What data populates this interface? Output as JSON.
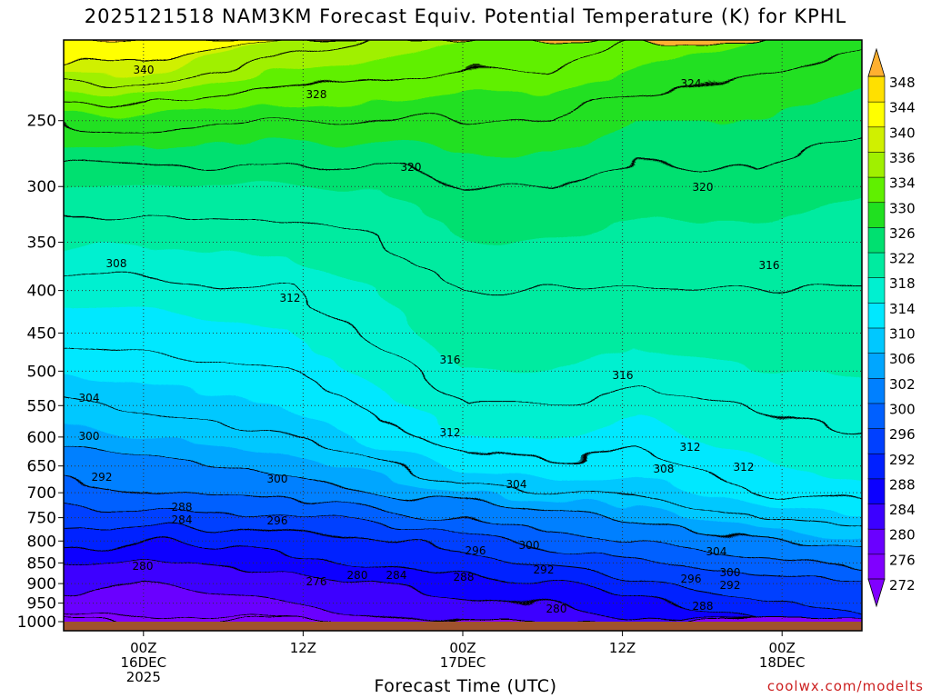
{
  "chart_data": {
    "type": "heatmap",
    "title": "2025121518 NAM3KM Forecast Equiv. Potential Temperature (K) for KPHL",
    "xlabel": "Forecast Time (UTC)",
    "ylabel": "",
    "y_scale": "log-pressure",
    "ylim": [
      1000,
      200
    ],
    "y_ticks": [
      250,
      300,
      350,
      400,
      450,
      500,
      550,
      600,
      650,
      700,
      750,
      800,
      850,
      900,
      950,
      1000
    ],
    "x_ticks": [
      {
        "label": [
          "00Z",
          "16DEC",
          "2025"
        ],
        "hour": 6
      },
      {
        "label": [
          "12Z"
        ],
        "hour": 18
      },
      {
        "label": [
          "00Z",
          "17DEC"
        ],
        "hour": 30
      },
      {
        "label": [
          "12Z"
        ],
        "hour": 42
      },
      {
        "label": [
          "00Z",
          "18DEC"
        ],
        "hour": 54
      }
    ],
    "xlim_hours": [
      0,
      60
    ],
    "grid": true,
    "colorbar": {
      "levels": [
        272,
        276,
        280,
        284,
        288,
        292,
        296,
        300,
        302,
        306,
        310,
        314,
        318,
        322,
        326,
        330,
        334,
        336,
        340,
        344,
        348
      ],
      "colors": [
        "#8000ff",
        "#6a00ff",
        "#3c00ff",
        "#0c00ff",
        "#0020ff",
        "#0040ff",
        "#0060ff",
        "#0080ff",
        "#00a6ff",
        "#00c8ff",
        "#00e8ff",
        "#00f0d0",
        "#00eba0",
        "#00e070",
        "#20e020",
        "#60f000",
        "#a0f000",
        "#d0f000",
        "#ffff00",
        "#ffe000",
        "#ffb030"
      ]
    },
    "isotherm_profiles": [
      {
        "hour": 0,
        "p": [
          1000,
          900,
          800,
          700,
          600,
          500,
          400,
          300,
          250,
          200
        ],
        "theta_e": [
          274,
          280,
          288,
          296,
          302,
          308,
          313,
          320,
          326,
          342
        ]
      },
      {
        "hour": 8,
        "p": [
          1000,
          900,
          800,
          700,
          600,
          500,
          400,
          300,
          250,
          200
        ],
        "theta_e": [
          273,
          277,
          286,
          298,
          304,
          309,
          313,
          320,
          327,
          342
        ]
      },
      {
        "hour": 18,
        "p": [
          1000,
          900,
          800,
          700,
          600,
          500,
          400,
          300,
          250,
          200
        ],
        "theta_e": [
          276,
          280,
          288,
          300,
          306,
          310,
          314,
          320,
          326,
          336
        ]
      },
      {
        "hour": 24,
        "p": [
          1000,
          900,
          800,
          700,
          600,
          500,
          400,
          300,
          250,
          200
        ],
        "theta_e": [
          277,
          282,
          290,
          302,
          309,
          313,
          316,
          320,
          326,
          334
        ]
      },
      {
        "hour": 30,
        "p": [
          1000,
          900,
          800,
          700,
          600,
          500,
          400,
          300,
          250,
          200
        ],
        "theta_e": [
          278,
          284,
          292,
          305,
          312,
          316,
          318,
          322,
          326,
          332
        ]
      },
      {
        "hour": 36,
        "p": [
          1000,
          900,
          800,
          700,
          600,
          500,
          400,
          300,
          250,
          200
        ],
        "theta_e": [
          279,
          287,
          296,
          306,
          312,
          316,
          318,
          322,
          326,
          332
        ]
      },
      {
        "hour": 42,
        "p": [
          1000,
          900,
          800,
          700,
          600,
          500,
          400,
          300,
          250,
          200
        ],
        "theta_e": [
          281,
          289,
          298,
          307,
          311,
          315,
          318,
          321,
          324,
          330
        ]
      },
      {
        "hour": 50,
        "p": [
          1000,
          900,
          800,
          700,
          600,
          500,
          400,
          300,
          250,
          200
        ],
        "theta_e": [
          286,
          292,
          302,
          310,
          313,
          316,
          318,
          321,
          324,
          328
        ]
      },
      {
        "hour": 60,
        "p": [
          1000,
          900,
          800,
          700,
          600,
          500,
          400,
          300,
          250,
          200
        ],
        "theta_e": [
          290,
          294,
          304,
          312,
          314,
          316,
          318,
          320,
          322,
          326
        ]
      }
    ],
    "contour_labels": [
      "340",
      "328",
      "324",
      "320",
      "320",
      "316",
      "308",
      "312",
      "316",
      "316",
      "304",
      "312",
      "312",
      "300",
      "308",
      "312",
      "292",
      "300",
      "304",
      "288",
      "284",
      "296",
      "296",
      "300",
      "304",
      "280",
      "276",
      "280",
      "284",
      "288",
      "292",
      "296",
      "300",
      "292",
      "280",
      "288"
    ]
  },
  "header": {
    "title": "2025121518 NAM3KM Forecast Equiv. Potential Temperature (K) for KPHL"
  },
  "footer": {
    "xlabel": "Forecast Time (UTC)",
    "credit": "coolwx.com/modelts"
  }
}
